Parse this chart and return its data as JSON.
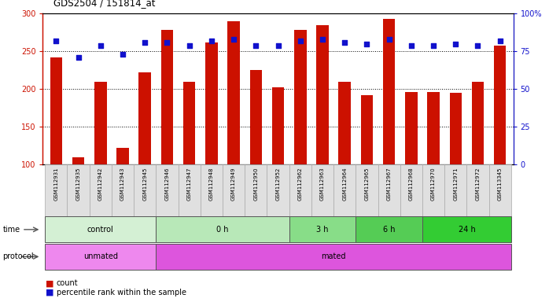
{
  "title": "GDS2504 / 151814_at",
  "samples": [
    "GSM112931",
    "GSM112935",
    "GSM112942",
    "GSM112943",
    "GSM112945",
    "GSM112946",
    "GSM112947",
    "GSM112948",
    "GSM112949",
    "GSM112950",
    "GSM112952",
    "GSM112962",
    "GSM112963",
    "GSM112964",
    "GSM112965",
    "GSM112967",
    "GSM112968",
    "GSM112970",
    "GSM112971",
    "GSM112972",
    "GSM113345"
  ],
  "bar_values": [
    242,
    110,
    210,
    122,
    222,
    278,
    210,
    262,
    290,
    225,
    202,
    278,
    285,
    210,
    192,
    293,
    196,
    196,
    195,
    210,
    258
  ],
  "dot_values": [
    82,
    71,
    79,
    73,
    81,
    81,
    79,
    82,
    83,
    79,
    79,
    82,
    83,
    81,
    80,
    83,
    79,
    79,
    80,
    79,
    82
  ],
  "bar_color": "#cc1100",
  "dot_color": "#1111cc",
  "ylim_left": [
    100,
    300
  ],
  "ylim_right": [
    0,
    100
  ],
  "yticks_left": [
    100,
    150,
    200,
    250,
    300
  ],
  "yticks_right": [
    0,
    25,
    50,
    75,
    100
  ],
  "yticklabels_right": [
    "0",
    "25",
    "50",
    "75",
    "100%"
  ],
  "grid_values": [
    150,
    200,
    250
  ],
  "time_groups": [
    {
      "label": "control",
      "start": 0,
      "end": 5,
      "color": "#d4f0d4"
    },
    {
      "label": "0 h",
      "start": 5,
      "end": 11,
      "color": "#b8e8b8"
    },
    {
      "label": "3 h",
      "start": 11,
      "end": 14,
      "color": "#88dd88"
    },
    {
      "label": "6 h",
      "start": 14,
      "end": 17,
      "color": "#55cc55"
    },
    {
      "label": "24 h",
      "start": 17,
      "end": 21,
      "color": "#33cc33"
    }
  ],
  "protocol_groups": [
    {
      "label": "unmated",
      "start": 0,
      "end": 5,
      "color": "#ee88ee"
    },
    {
      "label": "mated",
      "start": 5,
      "end": 21,
      "color": "#dd55dd"
    }
  ],
  "legend_items": [
    {
      "color": "#cc1100",
      "label": "count"
    },
    {
      "color": "#1111cc",
      "label": "percentile rank within the sample"
    }
  ],
  "background_color": "#ffffff",
  "plot_bg_color": "#ffffff",
  "label_bg_color": "#e0e0e0"
}
